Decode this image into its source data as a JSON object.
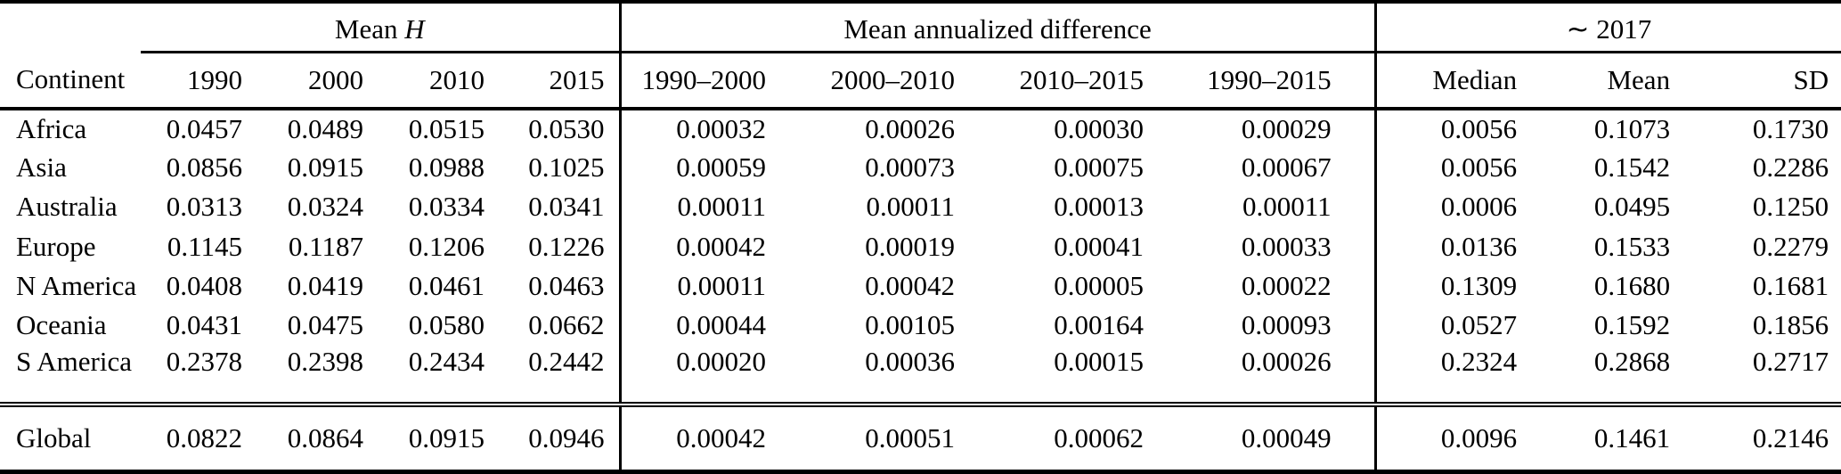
{
  "table": {
    "group_headers": {
      "mean_h": {
        "prefix": "Mean",
        "symbol": "H",
        "span": 4
      },
      "annualized": {
        "label": "Mean annualized difference",
        "span": 4
      },
      "y2017": {
        "tilde": "∼",
        "label": "2017",
        "span": 3
      }
    },
    "columns": [
      "Continent",
      "1990",
      "2000",
      "2010",
      "2015",
      "1990–2000",
      "2000–2010",
      "2010–2015",
      "1990–2015",
      "Median",
      "Mean",
      "SD"
    ],
    "rows": [
      {
        "continent": "Africa",
        "values": [
          "0.0457",
          "0.0489",
          "0.0515",
          "0.0530",
          "0.00032",
          "0.00026",
          "0.00030",
          "0.00029",
          "0.0056",
          "0.1073",
          "0.1730"
        ]
      },
      {
        "continent": "Asia",
        "values": [
          "0.0856",
          "0.0915",
          "0.0988",
          "0.1025",
          "0.00059",
          "0.00073",
          "0.00075",
          "0.00067",
          "0.0056",
          "0.1542",
          "0.2286"
        ]
      },
      {
        "continent": "Australia",
        "values": [
          "0.0313",
          "0.0324",
          "0.0334",
          "0.0341",
          "0.00011",
          "0.00011",
          "0.00013",
          "0.00011",
          "0.0006",
          "0.0495",
          "0.1250"
        ]
      },
      {
        "continent": "Europe",
        "values": [
          "0.1145",
          "0.1187",
          "0.1206",
          "0.1226",
          "0.00042",
          "0.00019",
          "0.00041",
          "0.00033",
          "0.0136",
          "0.1533",
          "0.2279"
        ]
      },
      {
        "continent": "N America",
        "values": [
          "0.0408",
          "0.0419",
          "0.0461",
          "0.0463",
          "0.00011",
          "0.00042",
          "0.00005",
          "0.00022",
          "0.1309",
          "0.1680",
          "0.1681"
        ]
      },
      {
        "continent": "Oceania",
        "values": [
          "0.0431",
          "0.0475",
          "0.0580",
          "0.0662",
          "0.00044",
          "0.00105",
          "0.00164",
          "0.00093",
          "0.0527",
          "0.1592",
          "0.1856"
        ]
      },
      {
        "continent": "S America",
        "values": [
          "0.2378",
          "0.2398",
          "0.2434",
          "0.2442",
          "0.00020",
          "0.00036",
          "0.00015",
          "0.00026",
          "0.2324",
          "0.2868",
          "0.2717"
        ]
      }
    ],
    "footer_row": {
      "continent": "Global",
      "values": [
        "0.0822",
        "0.0864",
        "0.0915",
        "0.0946",
        "0.00042",
        "0.00051",
        "0.00062",
        "0.00049",
        "0.0096",
        "0.1461",
        "0.2146"
      ]
    }
  }
}
